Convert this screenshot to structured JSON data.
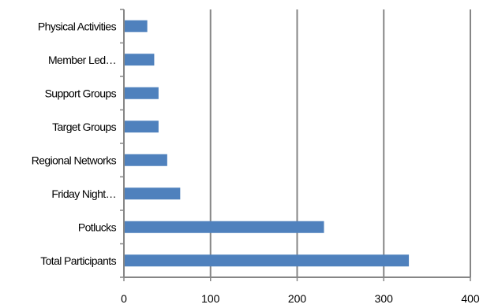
{
  "chart_data": {
    "type": "bar",
    "orientation": "horizontal",
    "title": "",
    "xlabel": "",
    "ylabel": "",
    "categories": [
      "Physical Activities",
      "Member Led…",
      "Support Groups",
      "Target Groups",
      "Regional Networks",
      "Friday Night…",
      "Potlucks",
      "Total Participants"
    ],
    "values": [
      27,
      35,
      40,
      40,
      50,
      65,
      231,
      329
    ],
    "xlim": [
      0,
      400
    ],
    "xticks": [
      0,
      100,
      200,
      300,
      400
    ],
    "xtick_labels": [
      "0",
      "100",
      "200",
      "300",
      "400"
    ],
    "grid": "vertical",
    "legend": "none",
    "colors": {
      "bar": "#4f81bd",
      "grid": "#868686",
      "axis": "#868686"
    }
  }
}
